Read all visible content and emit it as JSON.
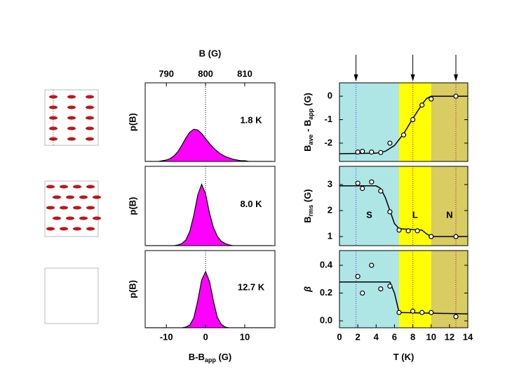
{
  "chart_data": [
    {
      "type": "area",
      "label": "1.8 K",
      "ylabel": "p(B)",
      "color": "#ff00ff",
      "x": [
        -15,
        -14,
        -13,
        -12,
        -11,
        -10,
        -9,
        -8,
        -7,
        -6,
        -5,
        -4,
        -3,
        -2,
        -1,
        0,
        1,
        2,
        3,
        4,
        5,
        6,
        7,
        8,
        9,
        10,
        11,
        12,
        13,
        14,
        15,
        16,
        17
      ],
      "values": [
        0,
        0,
        0,
        0,
        0.01,
        0.02,
        0.04,
        0.08,
        0.14,
        0.23,
        0.33,
        0.41,
        0.45,
        0.44,
        0.39,
        0.32,
        0.25,
        0.19,
        0.14,
        0.1,
        0.07,
        0.05,
        0.03,
        0.02,
        0.01,
        0.01,
        0,
        0,
        0,
        0,
        0,
        0,
        0
      ],
      "xlim": [
        -15.4,
        17.7
      ],
      "ylim": [
        0,
        1.1
      ],
      "vline": 0,
      "x2label": "B (G)",
      "x2lim": [
        784.6,
        817.7
      ],
      "x2ticks": [
        790,
        800,
        810
      ]
    },
    {
      "type": "area",
      "label": "8.0 K",
      "ylabel": "p(B)",
      "color": "#ff00ff",
      "x": [
        -15,
        -14,
        -13,
        -12,
        -11,
        -10,
        -9,
        -8,
        -7,
        -6,
        -5,
        -4,
        -3,
        -2,
        -1,
        0,
        1,
        2,
        3,
        4,
        5,
        6,
        7,
        8,
        9,
        10,
        11,
        12,
        13,
        14,
        15,
        16,
        17
      ],
      "values": [
        0,
        0,
        0,
        0,
        0,
        0,
        0,
        0,
        0.01,
        0.03,
        0.08,
        0.2,
        0.42,
        0.7,
        0.85,
        0.72,
        0.45,
        0.25,
        0.13,
        0.06,
        0.03,
        0.01,
        0,
        0,
        0,
        0,
        0,
        0,
        0,
        0,
        0,
        0,
        0
      ],
      "xlim": [
        -15.4,
        17.7
      ],
      "ylim": [
        0,
        1.1
      ],
      "vline": 0
    },
    {
      "type": "area",
      "label": "12.7 K",
      "ylabel": "p(B)",
      "color": "#ff00ff",
      "x": [
        -15,
        -14,
        -13,
        -12,
        -11,
        -10,
        -9,
        -8,
        -7,
        -6,
        -5,
        -4,
        -3,
        -2,
        -1,
        0,
        1,
        2,
        3,
        4,
        5,
        6,
        7,
        8,
        9,
        10,
        11,
        12,
        13,
        14,
        15,
        16,
        17
      ],
      "values": [
        0,
        0,
        0,
        0,
        0,
        0,
        0,
        0,
        0,
        0,
        0.01,
        0.04,
        0.14,
        0.38,
        0.68,
        0.8,
        0.66,
        0.38,
        0.15,
        0.05,
        0.01,
        0,
        0,
        0,
        0,
        0,
        0,
        0,
        0,
        0,
        0,
        0,
        0
      ],
      "xlim": [
        -15.4,
        17.7
      ],
      "ylim": [
        0,
        1.1
      ],
      "vline": 0,
      "xlabel": [
        "B-B",
        "app",
        " (G)"
      ],
      "xticks": [
        -10,
        0,
        10
      ]
    },
    {
      "type": "scatter",
      "ylabel": [
        "B",
        "ave",
        " - B",
        "app",
        " (G)"
      ],
      "xlim": [
        0,
        14
      ],
      "ylim": [
        -2.78,
        0.57
      ],
      "yticks": [
        0,
        -1,
        -2
      ],
      "regions": [
        {
          "start": 0,
          "end": 6.5,
          "color": "#aee6e6"
        },
        {
          "start": 6.5,
          "end": 10,
          "color": "#ffff00"
        },
        {
          "start": 10,
          "end": 14,
          "color": "#d8cc62"
        }
      ],
      "vlines": [
        {
          "value": 1.8,
          "color": "#7a3cff"
        },
        {
          "value": 8.0,
          "color": "#d02060"
        },
        {
          "value": 12.7,
          "color": "#d02060"
        }
      ],
      "arrows": [
        1.8,
        8.0,
        12.7
      ],
      "points": {
        "x": [
          2,
          2.5,
          3.5,
          4.5,
          5.5,
          7,
          8,
          9,
          10,
          12.7
        ],
        "values": [
          -2.38,
          -2.35,
          -2.38,
          -2.4,
          -2.0,
          -1.65,
          -1.0,
          -0.38,
          -0.12,
          0
        ]
      },
      "fit": {
        "x": [
          0,
          4,
          5,
          6,
          7,
          8,
          9,
          9.5,
          10,
          14
        ],
        "values": [
          -2.45,
          -2.43,
          -2.35,
          -2.1,
          -1.6,
          -0.95,
          -0.35,
          -0.1,
          0,
          0
        ]
      }
    },
    {
      "type": "scatter",
      "ylabel": [
        "B",
        "rms",
        " (G)"
      ],
      "xlim": [
        0,
        14
      ],
      "ylim": [
        0.65,
        3.7
      ],
      "yticks": [
        1,
        2,
        3
      ],
      "regions": [
        {
          "name": "S",
          "start": 0,
          "end": 6.5,
          "color": "#aee6e6"
        },
        {
          "name": "L",
          "start": 6.5,
          "end": 10,
          "color": "#ffff00"
        },
        {
          "name": "N",
          "start": 10,
          "end": 14,
          "color": "#d8cc62"
        }
      ],
      "vlines": [
        {
          "value": 1.8,
          "color": "#7a3cff"
        },
        {
          "value": 8.0,
          "color": "#d02060"
        },
        {
          "value": 12.7,
          "color": "#d02060"
        }
      ],
      "points": {
        "x": [
          2,
          2.5,
          3.5,
          4.5,
          5.5,
          6.5,
          7.5,
          8.5,
          10,
          12.7
        ],
        "values": [
          3.05,
          2.85,
          3.1,
          2.75,
          1.95,
          1.25,
          1.22,
          1.22,
          1.0,
          1.0
        ]
      },
      "fit": {
        "x": [
          0,
          4,
          4.5,
          5,
          5.5,
          6,
          6.5,
          9,
          9.5,
          10,
          14
        ],
        "values": [
          2.95,
          2.95,
          2.85,
          2.5,
          2.0,
          1.5,
          1.3,
          1.25,
          1.1,
          1.0,
          1.0
        ]
      }
    },
    {
      "type": "scatter",
      "ylabel": [
        "β"
      ],
      "xlim": [
        0,
        14
      ],
      "ylim": [
        -0.05,
        0.506
      ],
      "yticks": [
        {
          "value": 0,
          "label": "0.0"
        },
        0.2,
        0.4
      ],
      "regions": [
        {
          "start": 0,
          "end": 6.5,
          "color": "#aee6e6"
        },
        {
          "start": 6.5,
          "end": 10,
          "color": "#ffff00"
        },
        {
          "start": 10,
          "end": 14,
          "color": "#d8cc62"
        }
      ],
      "vlines": [
        {
          "value": 1.8,
          "color": "#7a3cff"
        },
        {
          "value": 8.0,
          "color": "#d02060"
        },
        {
          "value": 12.7,
          "color": "#d02060"
        }
      ],
      "points": {
        "x": [
          2,
          2.5,
          3.5,
          4.5,
          5.5,
          6.5,
          8,
          9,
          10,
          12.7
        ],
        "values": [
          0.32,
          0.2,
          0.4,
          0.23,
          0.25,
          0.06,
          0.07,
          0.06,
          0.06,
          0.03
        ]
      },
      "fit": {
        "x": [
          0,
          5.5,
          6,
          6.5,
          14
        ],
        "values": [
          0.28,
          0.28,
          0.2,
          0.06,
          0.05
        ]
      },
      "xlabel": [
        "T (K)"
      ],
      "xticks": [
        0,
        2,
        4,
        6,
        8,
        10,
        12,
        14
      ]
    }
  ]
}
